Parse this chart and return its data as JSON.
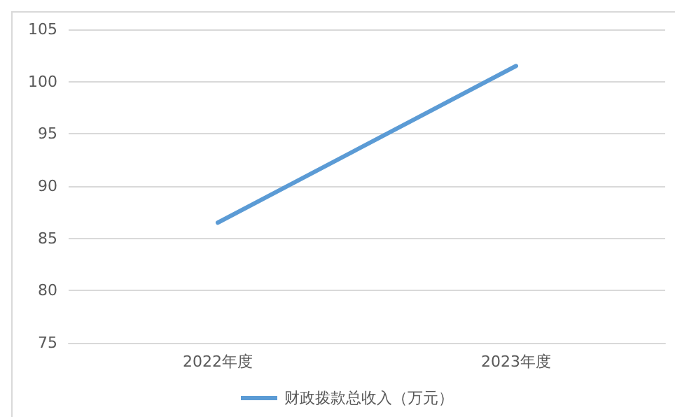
{
  "chart_data": {
    "type": "line",
    "categories": [
      "2022年度",
      "2023年度"
    ],
    "series": [
      {
        "name": "财政拨款总收入（万元）",
        "color": "#5b9bd5",
        "values": [
          86.5,
          101.5
        ]
      }
    ],
    "ylim": [
      75,
      105
    ],
    "yticks": [
      75,
      80,
      85,
      90,
      95,
      100,
      105
    ],
    "grid": "y",
    "legend": "bottom",
    "marker": "none",
    "line_style": "solid"
  }
}
